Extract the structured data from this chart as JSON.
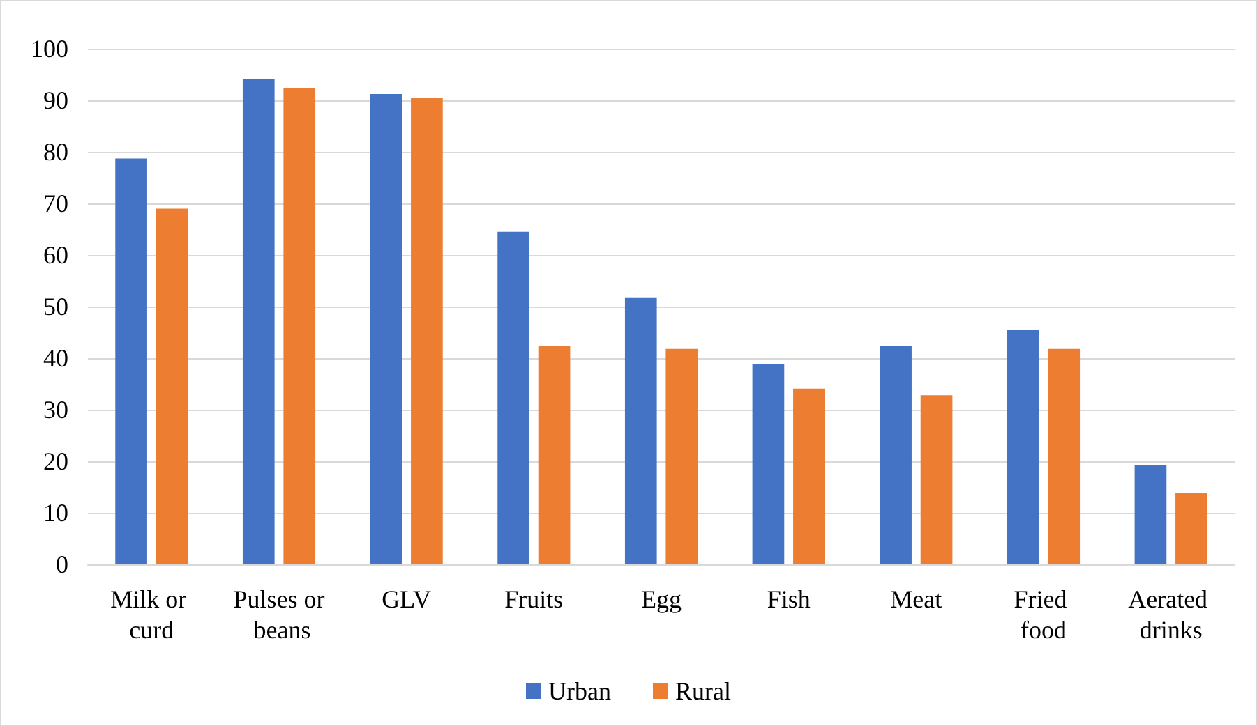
{
  "chart_data": {
    "type": "bar",
    "categories": [
      "Milk or curd",
      "Pulses or beans",
      "GLV",
      "Fruits",
      "Egg",
      "Fish",
      "Meat",
      "Fried food",
      "Aerated drinks"
    ],
    "series": [
      {
        "name": "Urban",
        "color": "#4472c4",
        "values": [
          78.7,
          94.2,
          91.2,
          64.5,
          51.8,
          38.9,
          42.3,
          45.4,
          19.2
        ]
      },
      {
        "name": "Rural",
        "color": "#ed7d31",
        "values": [
          69.0,
          92.3,
          90.5,
          42.3,
          41.8,
          34.1,
          32.8,
          41.8,
          13.9
        ]
      }
    ],
    "ylim": [
      0,
      100
    ],
    "yticks": [
      0,
      10,
      20,
      30,
      40,
      50,
      60,
      70,
      80,
      90,
      100
    ],
    "grid": "y",
    "legend": "bottom"
  }
}
